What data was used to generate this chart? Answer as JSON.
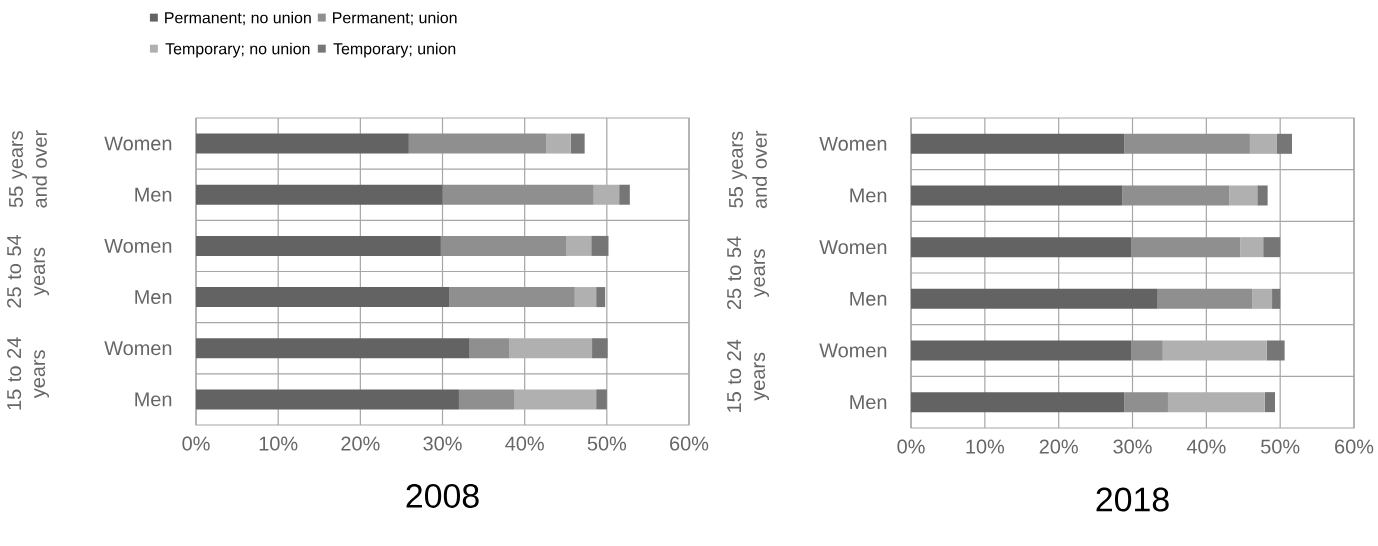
{
  "chart_data": [
    {
      "type": "bar",
      "orientation": "horizontal",
      "stacked": true,
      "title": "2008",
      "categories": [
        "Women",
        "Men",
        "Women",
        "Men",
        "Women",
        "Men"
      ],
      "annotations": [
        "55 years and over",
        "25 to 54 years",
        "15 to 24 years"
      ],
      "series": [
        {
          "name": "Permanent; no union",
          "color": "#636363",
          "values": [
            25.9,
            30.0,
            29.8,
            30.8,
            33.3,
            32.0
          ]
        },
        {
          "name": "Permanent; union",
          "color": "#8f8f8f",
          "values": [
            16.7,
            18.4,
            15.3,
            15.3,
            4.8,
            6.7
          ]
        },
        {
          "name": "Temporary; no union",
          "color": "#b0b0b0",
          "values": [
            3.0,
            3.1,
            3.0,
            2.6,
            10.1,
            10.0
          ]
        },
        {
          "name": "Temporary; union",
          "color": "#767676",
          "values": [
            1.7,
            1.3,
            2.1,
            1.1,
            1.9,
            1.3
          ]
        }
      ],
      "xlim": [
        0,
        60
      ],
      "xticks": [
        {
          "value": 0,
          "label": "0%"
        },
        {
          "value": 10,
          "label": "10%"
        },
        {
          "value": 20,
          "label": "20%"
        },
        {
          "value": 30,
          "label": "30%"
        },
        {
          "value": 40,
          "label": "40%"
        },
        {
          "value": 50,
          "label": "50%"
        },
        {
          "value": 60,
          "label": "60%"
        }
      ],
      "grid": true,
      "legend": "top left"
    },
    {
      "type": "bar",
      "orientation": "horizontal",
      "stacked": true,
      "title": "2018",
      "categories": [
        "Women",
        "Men",
        "Women",
        "Men",
        "Women",
        "Men"
      ],
      "annotations": [
        "55 years and over",
        "25 to 54 years",
        "15 to 24 years"
      ],
      "series": [
        {
          "color": "#636363",
          "values": [
            28.9,
            28.6,
            29.8,
            33.4,
            29.8,
            28.9
          ]
        },
        {
          "color": "#8f8f8f",
          "values": [
            17.0,
            14.5,
            14.8,
            12.8,
            4.3,
            5.9
          ]
        },
        {
          "color": "#b0b0b0",
          "values": [
            3.6,
            3.8,
            3.1,
            2.7,
            14.1,
            13.1
          ]
        },
        {
          "color": "#767676",
          "values": [
            2.1,
            1.4,
            2.3,
            1.1,
            2.4,
            1.4
          ]
        }
      ],
      "xlim": [
        0,
        60
      ],
      "xticks": [
        {
          "value": 0,
          "label": "0%"
        },
        {
          "value": 10,
          "label": "10%"
        },
        {
          "value": 20,
          "label": "20%"
        },
        {
          "value": 30,
          "label": "30%"
        },
        {
          "value": 40,
          "label": "40%"
        },
        {
          "value": 50,
          "label": "50%"
        },
        {
          "value": 60,
          "label": "60%"
        }
      ],
      "grid": true
    }
  ]
}
